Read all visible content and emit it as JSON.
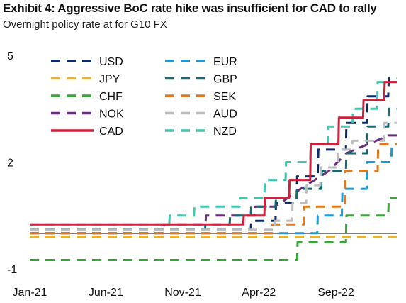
{
  "title": "Exhibit 4: Aggressive BoC rate hike was insufficient for CAD to rally",
  "subtitle": "Overnight policy rate at for G10 FX",
  "colors": {
    "USD": "#0b2a6b",
    "JPY": "#f2b21c",
    "CHF": "#3aa33a",
    "NOK": "#6b2d7d",
    "CAD": "#d21f3c",
    "EUR": "#1a9cd8",
    "GBP": "#136b73",
    "SEK": "#e2781a",
    "AUD": "#bdbdbd",
    "NZD": "#45c4ae",
    "zero_line": "#333333"
  },
  "chart_data": {
    "type": "line",
    "x_start": "2021-01-01",
    "x_ticks": [
      "Jan-21",
      "Jun-21",
      "Nov-21",
      "Apr-22",
      "Sep-22"
    ],
    "y_ticks": [
      "5",
      "2",
      "-1"
    ],
    "ylim": [
      -1,
      5
    ],
    "legend_placement": "top-left",
    "series": [
      {
        "name": "USD",
        "style": "dashed",
        "data": [
          [
            "2021-01-01",
            0.1
          ],
          [
            "2022-03-16",
            0.1
          ],
          [
            "2022-03-17",
            0.35
          ],
          [
            "2022-05-04",
            0.35
          ],
          [
            "2022-05-05",
            0.85
          ],
          [
            "2022-06-15",
            0.85
          ],
          [
            "2022-06-16",
            1.6
          ],
          [
            "2022-07-27",
            1.6
          ],
          [
            "2022-07-28",
            2.35
          ],
          [
            "2022-09-21",
            2.35
          ],
          [
            "2022-09-22",
            3.1
          ],
          [
            "2022-11-02",
            3.1
          ],
          [
            "2022-11-03",
            3.85
          ],
          [
            "2022-12-14",
            3.85
          ],
          [
            "2022-12-15",
            4.35
          ],
          [
            "2022-12-31",
            4.35
          ]
        ]
      },
      {
        "name": "JPY",
        "style": "dashed",
        "data": [
          [
            "2021-01-01",
            -0.1
          ],
          [
            "2022-12-31",
            -0.1
          ]
        ]
      },
      {
        "name": "CHF",
        "style": "dashed",
        "data": [
          [
            "2021-01-01",
            -0.75
          ],
          [
            "2022-06-16",
            -0.75
          ],
          [
            "2022-06-17",
            -0.25
          ],
          [
            "2022-09-21",
            -0.25
          ],
          [
            "2022-09-22",
            0.5
          ],
          [
            "2022-12-14",
            0.5
          ],
          [
            "2022-12-15",
            1.0
          ],
          [
            "2022-12-31",
            1.0
          ]
        ]
      },
      {
        "name": "NOK",
        "style": "dashed",
        "data": [
          [
            "2021-01-01",
            0.0
          ],
          [
            "2021-09-23",
            0.0
          ],
          [
            "2021-09-24",
            0.25
          ],
          [
            "2021-12-16",
            0.25
          ],
          [
            "2021-12-17",
            0.5
          ],
          [
            "2022-03-24",
            0.5
          ],
          [
            "2022-03-25",
            0.75
          ],
          [
            "2022-05-04",
            0.75
          ],
          [
            "2022-06-23",
            1.25
          ],
          [
            "2022-08-18",
            1.75
          ],
          [
            "2022-09-22",
            2.25
          ],
          [
            "2022-11-03",
            2.5
          ],
          [
            "2022-12-15",
            2.75
          ],
          [
            "2022-12-31",
            2.75
          ]
        ]
      },
      {
        "name": "CAD",
        "style": "solid",
        "data": [
          [
            "2021-01-01",
            0.25
          ],
          [
            "2022-03-01",
            0.25
          ],
          [
            "2022-03-02",
            0.5
          ],
          [
            "2022-04-12",
            0.5
          ],
          [
            "2022-04-13",
            1.0
          ],
          [
            "2022-05-31",
            1.0
          ],
          [
            "2022-06-01",
            1.5
          ],
          [
            "2022-07-12",
            1.5
          ],
          [
            "2022-07-13",
            2.5
          ],
          [
            "2022-09-06",
            2.5
          ],
          [
            "2022-09-07",
            3.25
          ],
          [
            "2022-10-25",
            3.25
          ],
          [
            "2022-10-26",
            3.75
          ],
          [
            "2022-12-06",
            3.75
          ],
          [
            "2022-12-07",
            4.25
          ],
          [
            "2022-12-31",
            4.25
          ]
        ]
      },
      {
        "name": "EUR",
        "style": "dashed",
        "data": [
          [
            "2021-01-01",
            0.0
          ],
          [
            "2022-07-26",
            0.0
          ],
          [
            "2022-07-27",
            0.5
          ],
          [
            "2022-09-13",
            0.5
          ],
          [
            "2022-09-14",
            1.25
          ],
          [
            "2022-11-01",
            1.25
          ],
          [
            "2022-11-02",
            2.0
          ],
          [
            "2022-12-20",
            2.0
          ],
          [
            "2022-12-21",
            2.5
          ],
          [
            "2022-12-31",
            2.5
          ]
        ]
      },
      {
        "name": "GBP",
        "style": "dashed",
        "data": [
          [
            "2021-01-01",
            0.1
          ],
          [
            "2021-12-15",
            0.1
          ],
          [
            "2021-12-16",
            0.25
          ],
          [
            "2022-02-02",
            0.25
          ],
          [
            "2022-02-03",
            0.5
          ],
          [
            "2022-03-16",
            0.5
          ],
          [
            "2022-03-17",
            0.75
          ],
          [
            "2022-05-04",
            0.75
          ],
          [
            "2022-05-05",
            1.0
          ],
          [
            "2022-06-15",
            1.0
          ],
          [
            "2022-06-16",
            1.25
          ],
          [
            "2022-08-03",
            1.25
          ],
          [
            "2022-08-04",
            1.75
          ],
          [
            "2022-09-21",
            1.75
          ],
          [
            "2022-09-22",
            2.25
          ],
          [
            "2022-11-02",
            2.25
          ],
          [
            "2022-11-03",
            3.0
          ],
          [
            "2022-12-14",
            3.0
          ],
          [
            "2022-12-15",
            3.5
          ],
          [
            "2022-12-31",
            3.5
          ]
        ]
      },
      {
        "name": "SEK",
        "style": "dashed",
        "data": [
          [
            "2021-01-01",
            0.0
          ],
          [
            "2022-04-27",
            0.0
          ],
          [
            "2022-04-28",
            0.25
          ],
          [
            "2022-06-29",
            0.25
          ],
          [
            "2022-06-30",
            0.75
          ],
          [
            "2022-09-19",
            0.75
          ],
          [
            "2022-09-20",
            1.75
          ],
          [
            "2022-11-23",
            1.75
          ],
          [
            "2022-11-24",
            2.5
          ],
          [
            "2022-12-31",
            2.5
          ]
        ]
      },
      {
        "name": "AUD",
        "style": "dashed",
        "data": [
          [
            "2021-01-01",
            0.1
          ],
          [
            "2022-05-02",
            0.1
          ],
          [
            "2022-05-03",
            0.35
          ],
          [
            "2022-06-06",
            0.35
          ],
          [
            "2022-06-07",
            0.85
          ],
          [
            "2022-07-04",
            0.85
          ],
          [
            "2022-07-05",
            1.35
          ],
          [
            "2022-08-01",
            1.35
          ],
          [
            "2022-08-02",
            1.85
          ],
          [
            "2022-09-05",
            1.85
          ],
          [
            "2022-09-06",
            2.35
          ],
          [
            "2022-10-03",
            2.35
          ],
          [
            "2022-10-04",
            2.6
          ],
          [
            "2022-12-05",
            2.6
          ],
          [
            "2022-12-06",
            3.1
          ],
          [
            "2022-12-31",
            3.1
          ]
        ]
      },
      {
        "name": "NZD",
        "style": "dashed",
        "data": [
          [
            "2021-01-01",
            0.25
          ],
          [
            "2021-10-05",
            0.25
          ],
          [
            "2021-10-06",
            0.5
          ],
          [
            "2021-11-23",
            0.5
          ],
          [
            "2021-11-24",
            0.75
          ],
          [
            "2022-02-22",
            0.75
          ],
          [
            "2022-02-23",
            1.0
          ],
          [
            "2022-04-12",
            1.0
          ],
          [
            "2022-04-13",
            1.5
          ],
          [
            "2022-05-24",
            1.5
          ],
          [
            "2022-05-25",
            2.0
          ],
          [
            "2022-07-12",
            2.0
          ],
          [
            "2022-07-13",
            2.5
          ],
          [
            "2022-08-16",
            2.5
          ],
          [
            "2022-08-17",
            3.0
          ],
          [
            "2022-10-04",
            3.0
          ],
          [
            "2022-10-05",
            3.5
          ],
          [
            "2022-11-22",
            3.5
          ],
          [
            "2022-11-23",
            4.25
          ],
          [
            "2022-12-31",
            4.25
          ]
        ]
      }
    ]
  }
}
